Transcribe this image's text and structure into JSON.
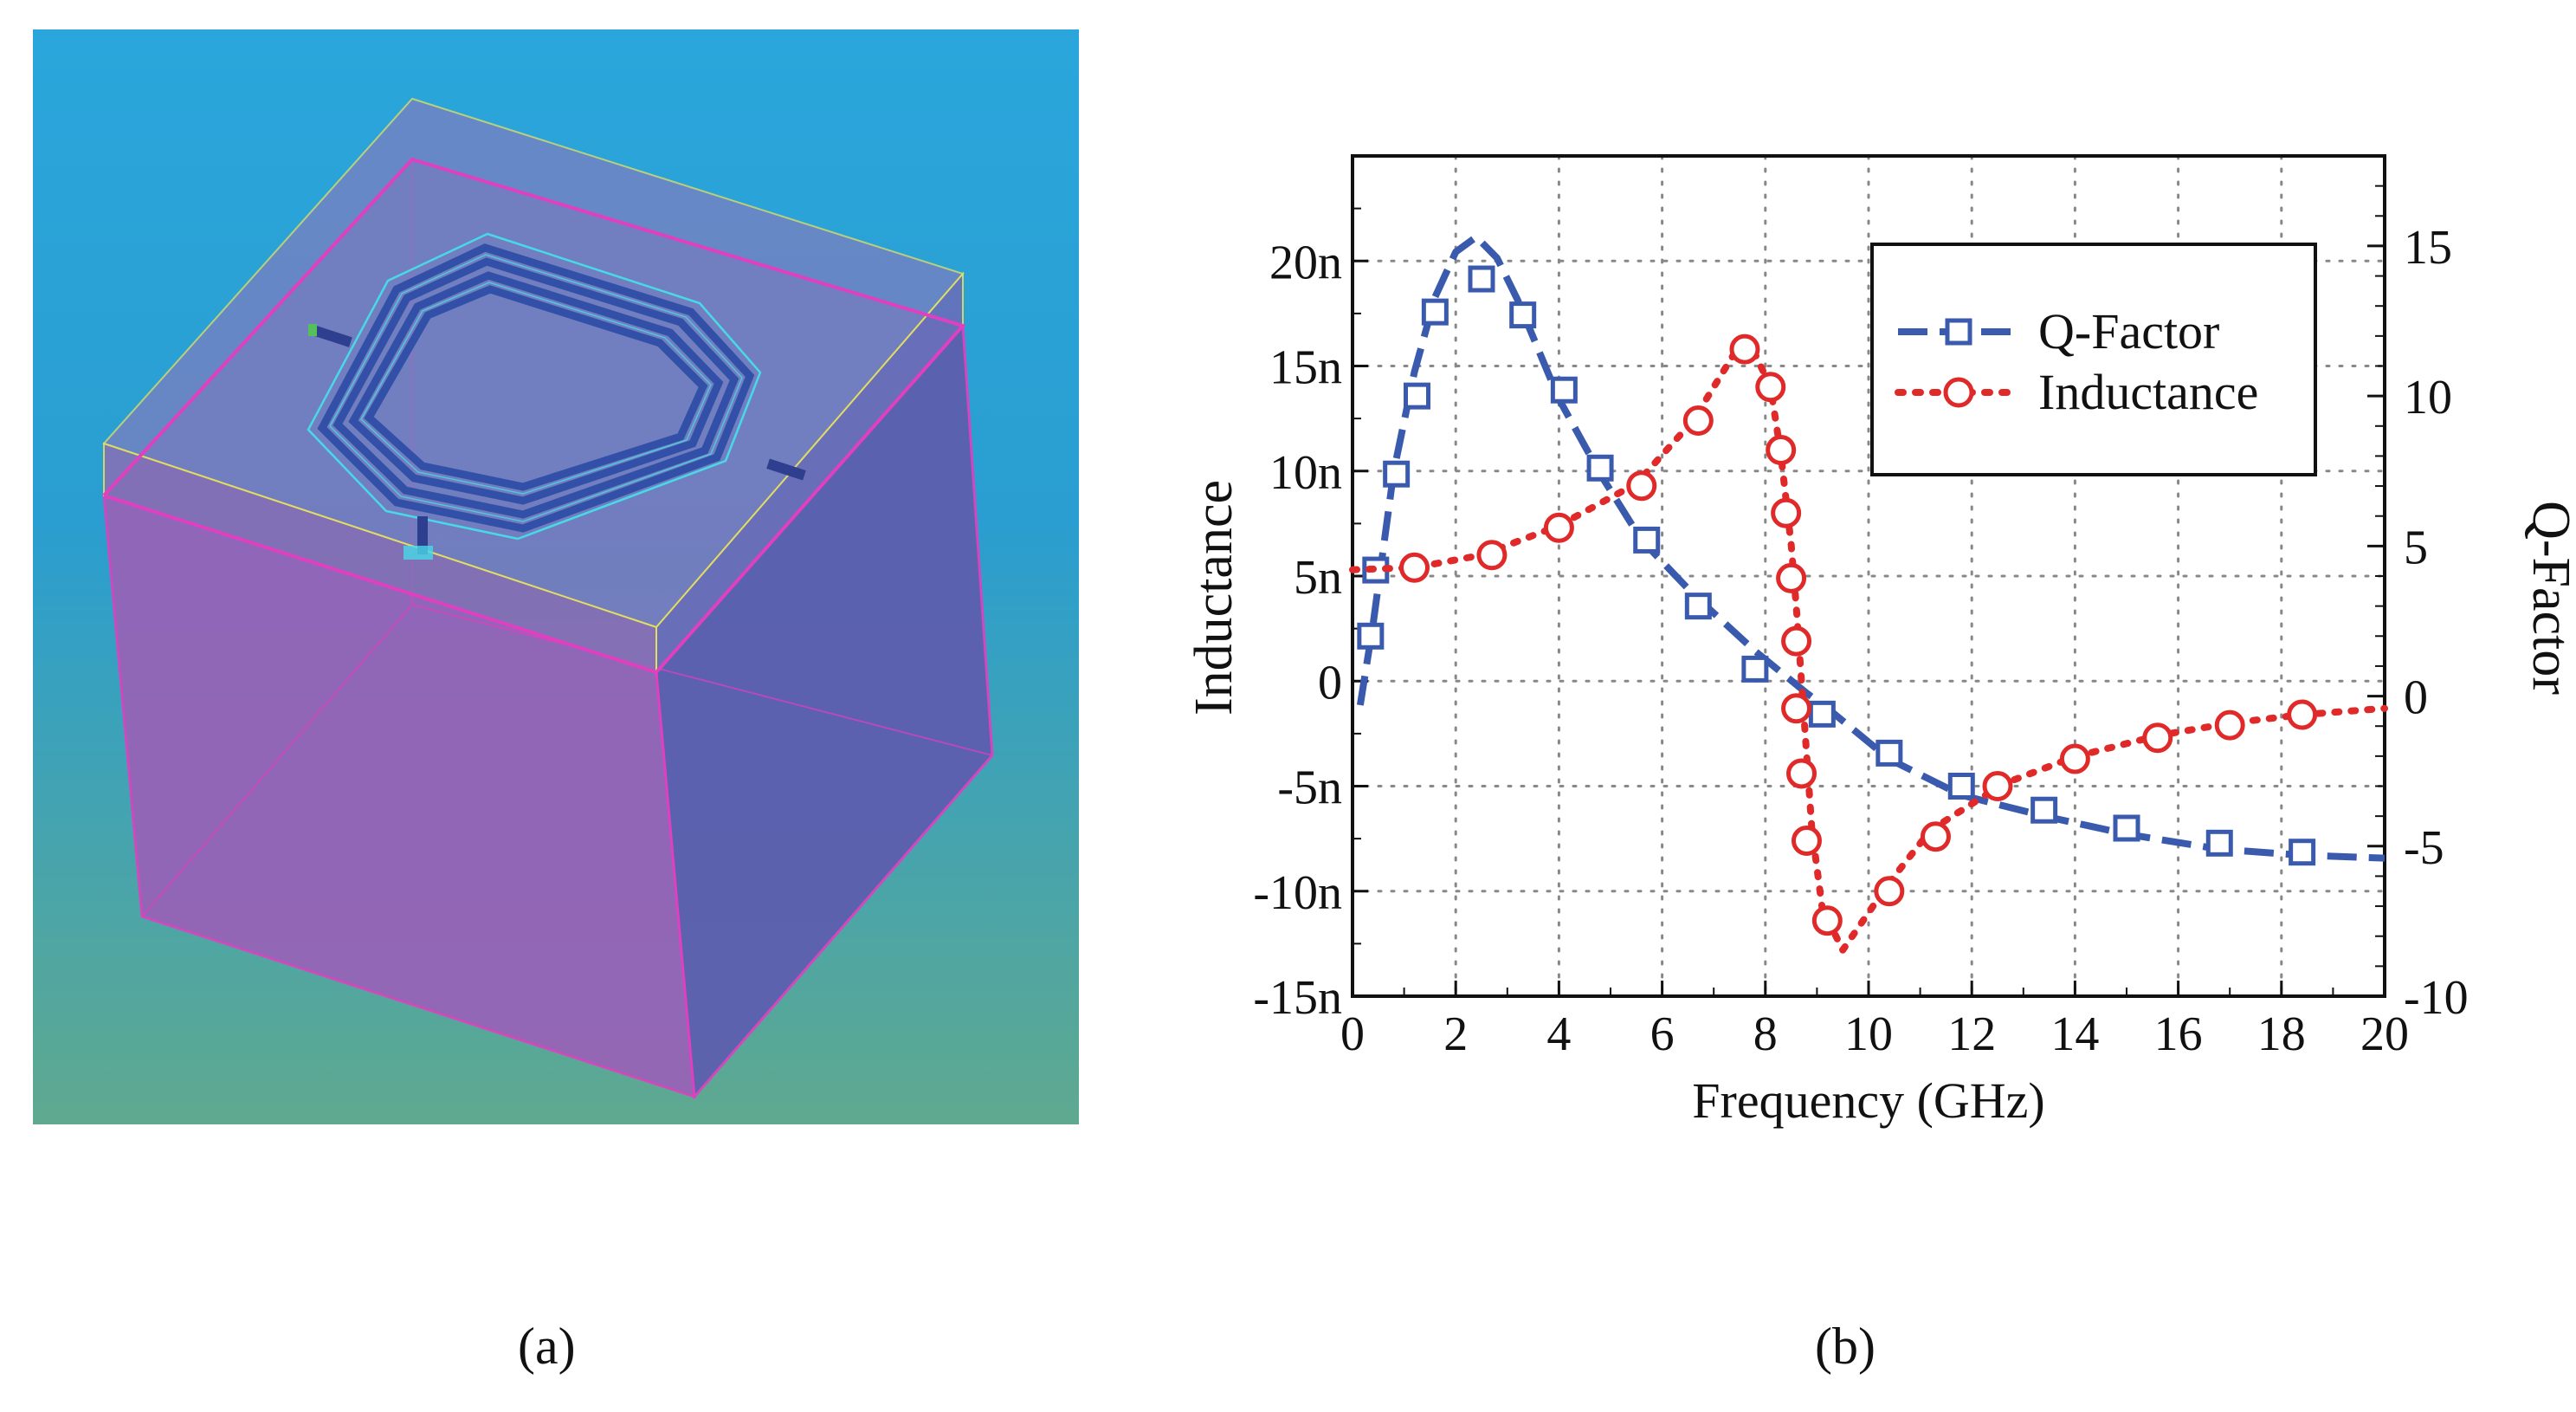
{
  "captions": {
    "a": "(a)",
    "b": "(b)"
  },
  "render": {
    "subject": "octagonal spiral inductor on substrate block",
    "colors": {
      "background_top": "#2aa6dc",
      "background_bottom": "#5fa98f",
      "substrate": "#9a63b8",
      "outline": "#e040c0",
      "coil": "#3350a8",
      "coil_highlight": "#49d8e8"
    }
  },
  "chart_data": {
    "type": "line",
    "xlabel": "Frequency (GHz)",
    "ylabel_left": "Inductance",
    "ylabel_right": "Q-Factor",
    "xlim": [
      0,
      20
    ],
    "ylim_left": [
      -1.5e-08,
      2.5e-08
    ],
    "ylim_right": [
      -10,
      18
    ],
    "x_ticks": [
      "0",
      "2",
      "4",
      "6",
      "8",
      "10",
      "12",
      "14",
      "16",
      "18",
      "20"
    ],
    "left_ticks": [
      {
        "value": 2e-08,
        "label": "20n"
      },
      {
        "value": 1.5e-08,
        "label": "15n"
      },
      {
        "value": 1e-08,
        "label": "10n"
      },
      {
        "value": 5e-09,
        "label": "5n"
      },
      {
        "value": 0,
        "label": "0"
      },
      {
        "value": -5e-09,
        "label": "-5n"
      },
      {
        "value": -1e-08,
        "label": "-10n"
      },
      {
        "value": -1.5e-08,
        "label": "-15n"
      }
    ],
    "right_ticks": [
      {
        "value": 15,
        "label": "15"
      },
      {
        "value": 10,
        "label": "10"
      },
      {
        "value": 5,
        "label": "5"
      },
      {
        "value": 0,
        "label": "0"
      },
      {
        "value": -5,
        "label": "-5"
      },
      {
        "value": -10,
        "label": "-10"
      }
    ],
    "grid": true,
    "legend_position": "top-right",
    "series": [
      {
        "name": "Q-Factor",
        "axis": "right",
        "color": "#3a5aad",
        "line_style": "dashed",
        "marker": "square",
        "curve": [
          [
            0.15,
            -0.3
          ],
          [
            0.4,
            2.4
          ],
          [
            0.8,
            7.5
          ],
          [
            1.2,
            10.8
          ],
          [
            1.6,
            13.3
          ],
          [
            2.0,
            14.8
          ],
          [
            2.4,
            15.3
          ],
          [
            2.8,
            14.6
          ],
          [
            3.2,
            13.2
          ],
          [
            4.0,
            9.9
          ],
          [
            4.8,
            7.4
          ],
          [
            5.6,
            5.2
          ],
          [
            6.6,
            3.4
          ],
          [
            7.8,
            1.5
          ],
          [
            8.8,
            0.1
          ],
          [
            9.2,
            -0.4
          ],
          [
            10.4,
            -2.1
          ],
          [
            11.8,
            -3.3
          ],
          [
            13.4,
            -4.0
          ],
          [
            15.0,
            -4.6
          ],
          [
            16.8,
            -5.1
          ],
          [
            18.4,
            -5.3
          ],
          [
            20.0,
            -5.4
          ]
        ],
        "markers": [
          [
            0.35,
            2.0
          ],
          [
            0.45,
            4.2
          ],
          [
            0.85,
            7.4
          ],
          [
            1.25,
            10.0
          ],
          [
            1.6,
            12.8
          ],
          [
            2.5,
            13.9
          ],
          [
            3.3,
            12.7
          ],
          [
            4.1,
            10.2
          ],
          [
            4.8,
            7.6
          ],
          [
            5.7,
            5.2
          ],
          [
            6.7,
            3.0
          ],
          [
            7.8,
            0.9
          ],
          [
            9.1,
            -0.6
          ],
          [
            10.4,
            -1.9
          ],
          [
            11.8,
            -3.0
          ],
          [
            13.4,
            -3.8
          ],
          [
            15.0,
            -4.4
          ],
          [
            16.8,
            -4.9
          ],
          [
            18.4,
            -5.2
          ]
        ]
      },
      {
        "name": "Inductance",
        "axis": "left",
        "color": "#e02a2a",
        "line_style": "dotted",
        "marker": "circle",
        "curve": [
          [
            0,
            5.3e-09
          ],
          [
            1.2,
            5.4e-09
          ],
          [
            2.5,
            6e-09
          ],
          [
            4.0,
            7.4e-09
          ],
          [
            5.5,
            9.4e-09
          ],
          [
            6.6,
            1.24e-08
          ],
          [
            7.4,
            1.56e-08
          ],
          [
            7.7,
            1.61e-08
          ],
          [
            8.1,
            1.4e-08
          ],
          [
            8.3,
            1.08e-08
          ],
          [
            8.5,
            6.5e-09
          ],
          [
            8.6,
            3.5e-09
          ],
          [
            8.7,
            0.0
          ],
          [
            8.8,
            -3.5e-09
          ],
          [
            8.9,
            -7e-09
          ],
          [
            9.1,
            -1.08e-08
          ],
          [
            9.5,
            -1.28e-08
          ],
          [
            10.4,
            -9.6e-09
          ],
          [
            11.2,
            -7.1e-09
          ],
          [
            12.6,
            -4.9e-09
          ],
          [
            14.0,
            -3.6e-09
          ],
          [
            15.6,
            -2.6e-09
          ],
          [
            17.0,
            -2e-09
          ],
          [
            18.4,
            -1.6e-09
          ],
          [
            20.0,
            -1.3e-09
          ]
        ],
        "markers": [
          [
            1.2,
            5.4e-09
          ],
          [
            2.7,
            6e-09
          ],
          [
            4.0,
            7.3e-09
          ],
          [
            5.6,
            9.3e-09
          ],
          [
            6.7,
            1.24e-08
          ],
          [
            7.6,
            1.58e-08
          ],
          [
            8.1,
            1.4e-08
          ],
          [
            8.3,
            1.1e-08
          ],
          [
            8.4,
            8e-09
          ],
          [
            8.5,
            4.9e-09
          ],
          [
            8.6,
            1.9e-09
          ],
          [
            8.6,
            -1.3e-09
          ],
          [
            8.7,
            -4.4e-09
          ],
          [
            8.8,
            -7.6e-09
          ],
          [
            9.2,
            -1.14e-08
          ],
          [
            10.4,
            -1e-08
          ],
          [
            11.3,
            -7.4e-09
          ],
          [
            12.5,
            -5e-09
          ],
          [
            14.0,
            -3.7e-09
          ],
          [
            15.6,
            -2.7e-09
          ],
          [
            17.0,
            -2.1e-09
          ],
          [
            18.4,
            -1.6e-09
          ]
        ]
      }
    ]
  }
}
